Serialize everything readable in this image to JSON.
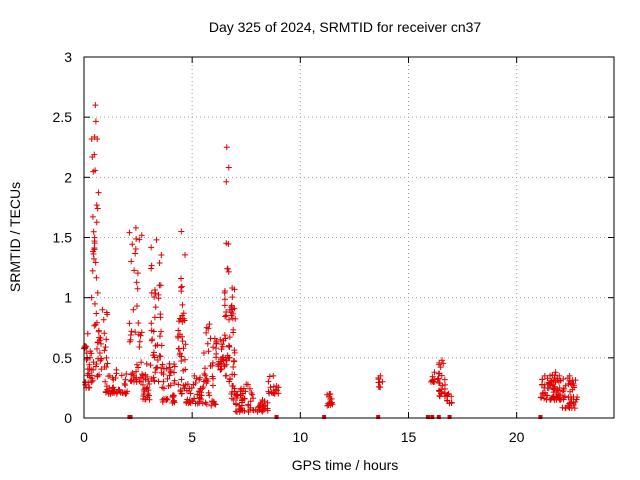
{
  "chart_data": {
    "type": "scatter",
    "title": "Day 325 of 2024, SRMTID for receiver cn37",
    "xlabel": "GPS time / hours",
    "ylabel": "SRMTID / TECUs",
    "xlim": [
      0,
      24.5
    ],
    "ylim": [
      0,
      3
    ],
    "xticks": [
      0,
      5,
      10,
      15,
      20
    ],
    "yticks": [
      0,
      0.5,
      1,
      1.5,
      2,
      2.5,
      3
    ],
    "xtick_labels": [
      "0",
      "5",
      "10",
      "15",
      "20"
    ],
    "ytick_labels": [
      "0",
      "0.5",
      "1",
      "1.5",
      "2",
      "2.5",
      "3"
    ],
    "grid": true,
    "series_color": "#e00000",
    "clusters": [
      {
        "x0": 0.0,
        "x1": 0.35,
        "ymin": 0.25,
        "ymax": 0.7,
        "n": 30
      },
      {
        "x0": 0.35,
        "x1": 0.7,
        "ymin": 0.3,
        "ymax": 2.6,
        "n": 45
      },
      {
        "x0": 0.6,
        "x1": 1.1,
        "ymin": 0.3,
        "ymax": 0.9,
        "n": 25
      },
      {
        "x0": 1.0,
        "x1": 2.0,
        "ymin": 0.2,
        "ymax": 0.4,
        "n": 45
      },
      {
        "x0": 2.1,
        "x1": 2.7,
        "ymin": 0.3,
        "ymax": 1.58,
        "n": 45
      },
      {
        "x0": 2.7,
        "x1": 3.1,
        "ymin": 0.15,
        "ymax": 0.45,
        "n": 25
      },
      {
        "x0": 3.1,
        "x1": 3.6,
        "ymin": 0.3,
        "ymax": 1.48,
        "n": 45
      },
      {
        "x0": 3.6,
        "x1": 4.3,
        "ymin": 0.12,
        "ymax": 0.45,
        "n": 35
      },
      {
        "x0": 4.3,
        "x1": 4.7,
        "ymin": 0.2,
        "ymax": 1.55,
        "n": 40
      },
      {
        "x0": 4.7,
        "x1": 5.5,
        "ymin": 0.12,
        "ymax": 0.35,
        "n": 40
      },
      {
        "x0": 5.5,
        "x1": 6.1,
        "ymin": 0.1,
        "ymax": 0.78,
        "n": 35
      },
      {
        "x0": 6.1,
        "x1": 6.5,
        "ymin": 0.4,
        "ymax": 0.65,
        "n": 25
      },
      {
        "x0": 6.5,
        "x1": 6.7,
        "ymin": 0.3,
        "ymax": 2.25,
        "n": 25
      },
      {
        "x0": 6.7,
        "x1": 7.0,
        "ymin": 0.15,
        "ymax": 1.08,
        "n": 40
      },
      {
        "x0": 7.0,
        "x1": 8.0,
        "ymin": 0.05,
        "ymax": 0.28,
        "n": 45
      },
      {
        "x0": 8.0,
        "x1": 8.5,
        "ymin": 0.05,
        "ymax": 0.15,
        "n": 20
      },
      {
        "x0": 8.5,
        "x1": 9.0,
        "ymin": 0.2,
        "ymax": 0.35,
        "n": 15
      },
      {
        "x0": 11.2,
        "x1": 11.5,
        "ymin": 0.1,
        "ymax": 0.2,
        "n": 14
      },
      {
        "x0": 13.6,
        "x1": 13.8,
        "ymin": 0.25,
        "ymax": 0.35,
        "n": 8
      },
      {
        "x0": 16.0,
        "x1": 16.4,
        "ymin": 0.3,
        "ymax": 0.38,
        "n": 12
      },
      {
        "x0": 16.4,
        "x1": 16.7,
        "ymin": 0.18,
        "ymax": 0.48,
        "n": 25
      },
      {
        "x0": 16.7,
        "x1": 17.0,
        "ymin": 0.12,
        "ymax": 0.2,
        "n": 8
      },
      {
        "x0": 21.1,
        "x1": 21.5,
        "ymin": 0.15,
        "ymax": 0.35,
        "n": 20
      },
      {
        "x0": 21.5,
        "x1": 22.1,
        "ymin": 0.15,
        "ymax": 0.38,
        "n": 45
      },
      {
        "x0": 22.1,
        "x1": 22.8,
        "ymin": 0.08,
        "ymax": 0.35,
        "n": 40
      }
    ],
    "zero_markers": [
      2.1,
      2.15,
      8.9,
      11.1,
      13.6,
      15.9,
      16.1,
      16.4,
      16.9,
      21.1
    ]
  }
}
